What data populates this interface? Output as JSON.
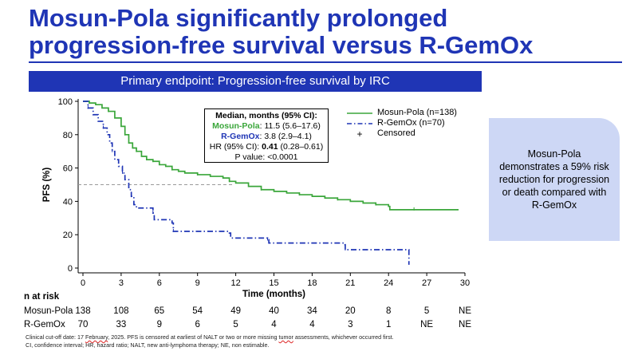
{
  "title_line1": "Mosun-Pola significantly prolonged",
  "title_line2": "progression-free survival versus R-GemOx",
  "banner": "Primary endpoint: Progression-free survival by IRC",
  "median_box": {
    "heading": "Median, months (95% CI):",
    "mosun_label": "Mosun-Pola",
    "mosun_value": ": 11.5 (5.6–17.6)",
    "rgemox_label": "R-GemOx",
    "rgemox_value": ": 3.8 (2.9–4.1)",
    "hr_label": "HR (95% CI): ",
    "hr_value": "0.41",
    "hr_ci": " (0.28–0.61)",
    "p_value": "P value: <0.0001"
  },
  "callout": "Mosun-Pola demonstrates a 59% risk reduction for progression or death compared with R-GemOx",
  "risk_table": {
    "heading": "n at risk",
    "rows": [
      {
        "label": "Mosun-Pola",
        "values": [
          "138",
          "108",
          "65",
          "54",
          "49",
          "40",
          "34",
          "20",
          "8",
          "5",
          "NE"
        ]
      },
      {
        "label": "R-GemOx",
        "values": [
          "70",
          "33",
          "9",
          "6",
          "5",
          "4",
          "4",
          "3",
          "1",
          "NE",
          "NE"
        ]
      }
    ]
  },
  "footnote_line1_a": "Clinical cut-off date: 17 ",
  "footnote_line1_b": "February",
  "footnote_line1_c": ", 2025. PFS is censored at earliest of NALT or two or more missing ",
  "footnote_line1_d": "tumor",
  "footnote_line1_e": " assessments, whichever occurred first.",
  "footnote_line2": "CI, confidence interval; HR, hazard ratio; NALT, new anti-lymphoma therapy; NE, non estimable.",
  "colors": {
    "mosun": "#3aa63a",
    "rgemox": "#1f35b5",
    "brand": "#1f35b5",
    "callout_bg": "#cdd7f5"
  },
  "chart_data": {
    "type": "line",
    "title": "",
    "xlabel": "Time (months)",
    "ylabel": "PFS (%)",
    "xlim": [
      0,
      30
    ],
    "ylim": [
      0,
      100
    ],
    "x_ticks": [
      0,
      3,
      6,
      9,
      12,
      15,
      18,
      21,
      24,
      27,
      30
    ],
    "y_ticks": [
      0,
      20,
      40,
      60,
      80,
      100
    ],
    "reference_line_y": 50,
    "legend": {
      "placement": "top-right",
      "entries": [
        "Mosun-Pola (n=138)",
        "R-GemOx (n=70)",
        "Censored"
      ],
      "censored_symbol": "+"
    },
    "series": [
      {
        "name": "Mosun-Pola (n=138)",
        "style": "solid",
        "color": "#3aa63a",
        "points": [
          [
            0,
            100
          ],
          [
            0.5,
            99
          ],
          [
            1,
            98
          ],
          [
            1.5,
            96
          ],
          [
            2,
            94
          ],
          [
            2.5,
            90
          ],
          [
            3,
            85
          ],
          [
            3.3,
            80
          ],
          [
            3.6,
            75
          ],
          [
            3.9,
            72
          ],
          [
            4.2,
            70
          ],
          [
            4.6,
            67
          ],
          [
            5,
            65
          ],
          [
            5.5,
            64
          ],
          [
            6,
            62
          ],
          [
            6.5,
            61
          ],
          [
            7,
            59
          ],
          [
            7.5,
            58
          ],
          [
            8,
            57
          ],
          [
            9,
            56
          ],
          [
            10,
            55
          ],
          [
            11,
            54
          ],
          [
            11.5,
            52
          ],
          [
            12,
            51
          ],
          [
            13,
            49
          ],
          [
            14,
            47
          ],
          [
            15,
            46
          ],
          [
            16,
            45
          ],
          [
            17,
            44
          ],
          [
            18,
            43
          ],
          [
            19,
            42
          ],
          [
            20,
            41
          ],
          [
            21,
            40
          ],
          [
            22,
            39
          ],
          [
            23,
            38
          ],
          [
            24,
            37
          ],
          [
            24.1,
            35
          ],
          [
            26,
            35
          ],
          [
            29.5,
            35
          ]
        ]
      },
      {
        "name": "R-GemOx (n=70)",
        "style": "dash-dot",
        "color": "#1f35b5",
        "points": [
          [
            0,
            100
          ],
          [
            0.4,
            96
          ],
          [
            0.8,
            92
          ],
          [
            1.2,
            88
          ],
          [
            1.6,
            84
          ],
          [
            1.9,
            80
          ],
          [
            2.1,
            75
          ],
          [
            2.3,
            70
          ],
          [
            2.5,
            65
          ],
          [
            2.8,
            61
          ],
          [
            3.1,
            57
          ],
          [
            3.3,
            53
          ],
          [
            3.6,
            47
          ],
          [
            3.8,
            43
          ],
          [
            4,
            38
          ],
          [
            4.2,
            36
          ],
          [
            5.5,
            33
          ],
          [
            5.6,
            29
          ],
          [
            7,
            27
          ],
          [
            7.1,
            22
          ],
          [
            11.5,
            21
          ],
          [
            11.6,
            18
          ],
          [
            14.5,
            17
          ],
          [
            14.6,
            15
          ],
          [
            20.5,
            14
          ],
          [
            20.6,
            11
          ],
          [
            25.5,
            11
          ],
          [
            25.6,
            2
          ]
        ]
      }
    ]
  }
}
